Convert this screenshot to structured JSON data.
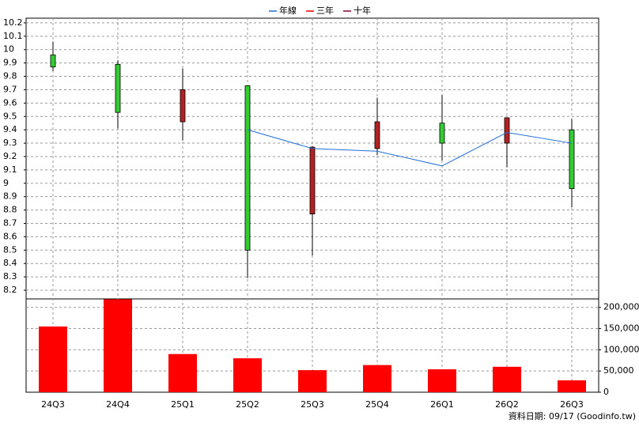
{
  "chart_data": {
    "type": "candlestick",
    "categories": [
      "24Q3",
      "24Q4",
      "25Q1",
      "25Q2",
      "25Q3",
      "25Q4",
      "26Q1",
      "26Q2",
      "26Q3"
    ],
    "open": [
      9.96,
      9.89,
      9.46,
      9.73,
      8.77,
      9.26,
      9.45,
      9.3,
      9.4
    ],
    "high": [
      10.06,
      9.92,
      9.86,
      9.73,
      9.28,
      9.64,
      9.66,
      9.49,
      9.48
    ],
    "low": [
      9.84,
      9.41,
      9.32,
      8.29,
      8.46,
      9.21,
      9.17,
      9.12,
      8.82
    ],
    "close": [
      9.87,
      9.53,
      9.7,
      8.5,
      9.27,
      9.46,
      9.3,
      9.49,
      8.96
    ],
    "up_color": "#b22222",
    "down_color": "#33cc33",
    "series": [
      {
        "name": "年線",
        "color": "#1e6fd9",
        "values": [
          null,
          null,
          null,
          9.4,
          9.26,
          9.24,
          9.13,
          9.38,
          9.3
        ]
      },
      {
        "name": "三年",
        "color": "#ee0000",
        "values": [
          null,
          null,
          null,
          null,
          null,
          null,
          null,
          null,
          null
        ]
      },
      {
        "name": "十年",
        "color": "#880033",
        "values": [
          null,
          null,
          null,
          null,
          null,
          null,
          null,
          null,
          null
        ]
      }
    ],
    "volume": {
      "color": "#ff0000",
      "values": [
        155000,
        219000,
        90000,
        80000,
        52000,
        64000,
        54000,
        60000,
        28000
      ]
    },
    "ylim": [
      8.135,
      10.235
    ],
    "yticks": [
      8.2,
      8.3,
      8.4,
      8.5,
      8.6,
      8.7,
      8.8,
      8.9,
      9,
      9.1,
      9.2,
      9.3,
      9.4,
      9.5,
      9.6,
      9.7,
      9.8,
      9.9,
      10,
      10.1,
      10.2
    ],
    "y2lim": [
      0,
      220000
    ],
    "y2ticks": [
      0,
      {
        "value": 50000,
        "label": "50,000"
      },
      {
        "value": 100000,
        "label": "100,000"
      },
      {
        "value": 150000,
        "label": "150,000"
      },
      {
        "value": 200000,
        "label": "200,000"
      }
    ],
    "grid": true,
    "legend": "top",
    "source": "資料日期: 09/17  (Goodinfo.tw)"
  }
}
